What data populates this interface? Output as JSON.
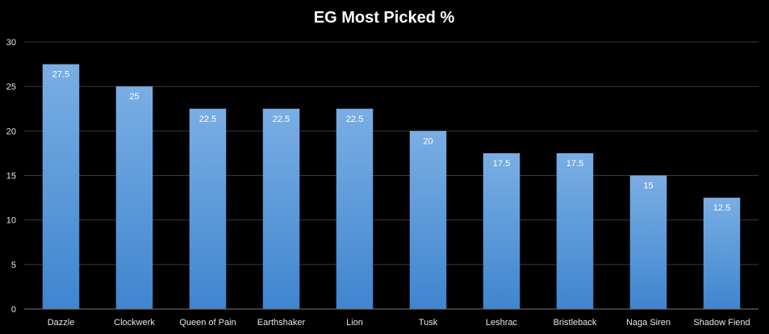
{
  "chart_data": {
    "type": "bar",
    "title": "EG Most Picked %",
    "xlabel": "",
    "ylabel": "",
    "categories": [
      "Dazzle",
      "Clockwerk",
      "Queen of Pain",
      "Earthshaker",
      "Lion",
      "Tusk",
      "Leshrac",
      "Bristleback",
      "Naga Siren",
      "Shadow Fiend"
    ],
    "values": [
      27.5,
      25,
      22.5,
      22.5,
      22.5,
      20,
      17.5,
      17.5,
      15,
      12.5
    ],
    "data_labels": [
      "27.5",
      "25",
      "22.5",
      "22.5",
      "22.5",
      "20",
      "17.5",
      "17.5",
      "15",
      "12.5"
    ],
    "ylim": [
      0,
      30
    ],
    "yticks": [
      0,
      5,
      10,
      15,
      20,
      25,
      30
    ],
    "ytick_labels": [
      "0",
      "5",
      "10",
      "15",
      "20",
      "25",
      "30"
    ],
    "grid": true,
    "legend": "none",
    "colors": {
      "background": "#000000",
      "bar_top": "#7aaee4",
      "bar_bottom": "#3f85cf",
      "grid": "#3a3a3a",
      "text": "#e6e6e6"
    }
  }
}
